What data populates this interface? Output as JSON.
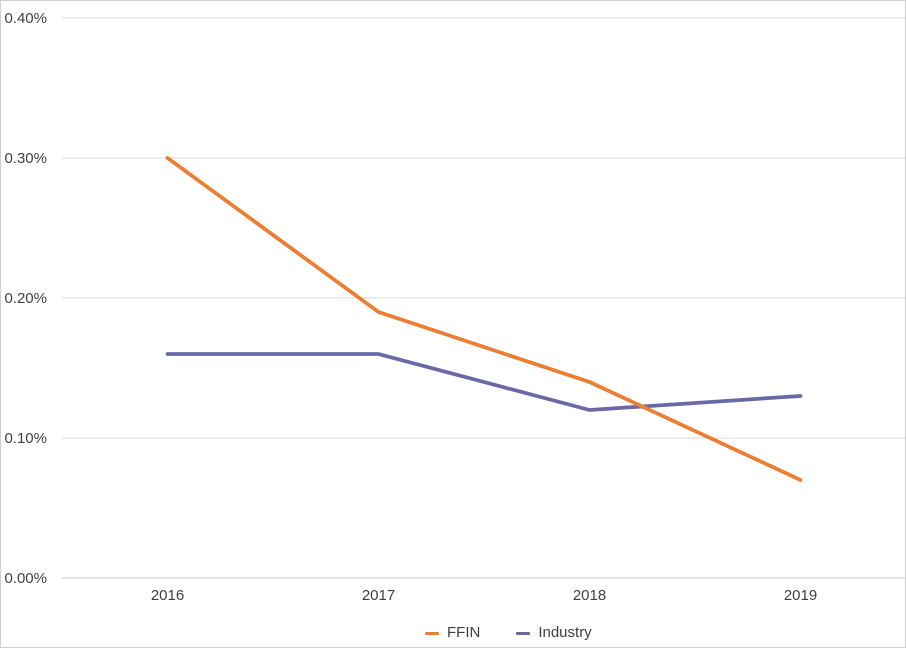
{
  "chart_data": {
    "type": "line",
    "title": "",
    "xlabel": "",
    "ylabel": "",
    "categories": [
      "2016",
      "2017",
      "2018",
      "2019"
    ],
    "series": [
      {
        "name": "FFIN",
        "color": "#ED7D31",
        "values": [
          0.3,
          0.19,
          0.14,
          0.07
        ]
      },
      {
        "name": "Industry",
        "color": "#6B69A5",
        "values": [
          0.16,
          0.16,
          0.12,
          0.13
        ]
      }
    ],
    "units": "%",
    "ylim": [
      0.0,
      0.4
    ],
    "y_tick_values": [
      0.0,
      0.1,
      0.2,
      0.3,
      0.4
    ],
    "y_tick_labels": [
      "0.00%",
      "0.10%",
      "0.20%",
      "0.30%",
      "0.40%"
    ],
    "grid": "horizontal",
    "legend_position": "bottom-center",
    "legend_entries": [
      "FFIN",
      "Industry"
    ]
  },
  "colors": {
    "gridline": "#D9D9D9",
    "axis_line": "#C9C9C9",
    "tick_text": "#404040",
    "background": "#FFFFFF",
    "border": "#CFCFCF"
  }
}
